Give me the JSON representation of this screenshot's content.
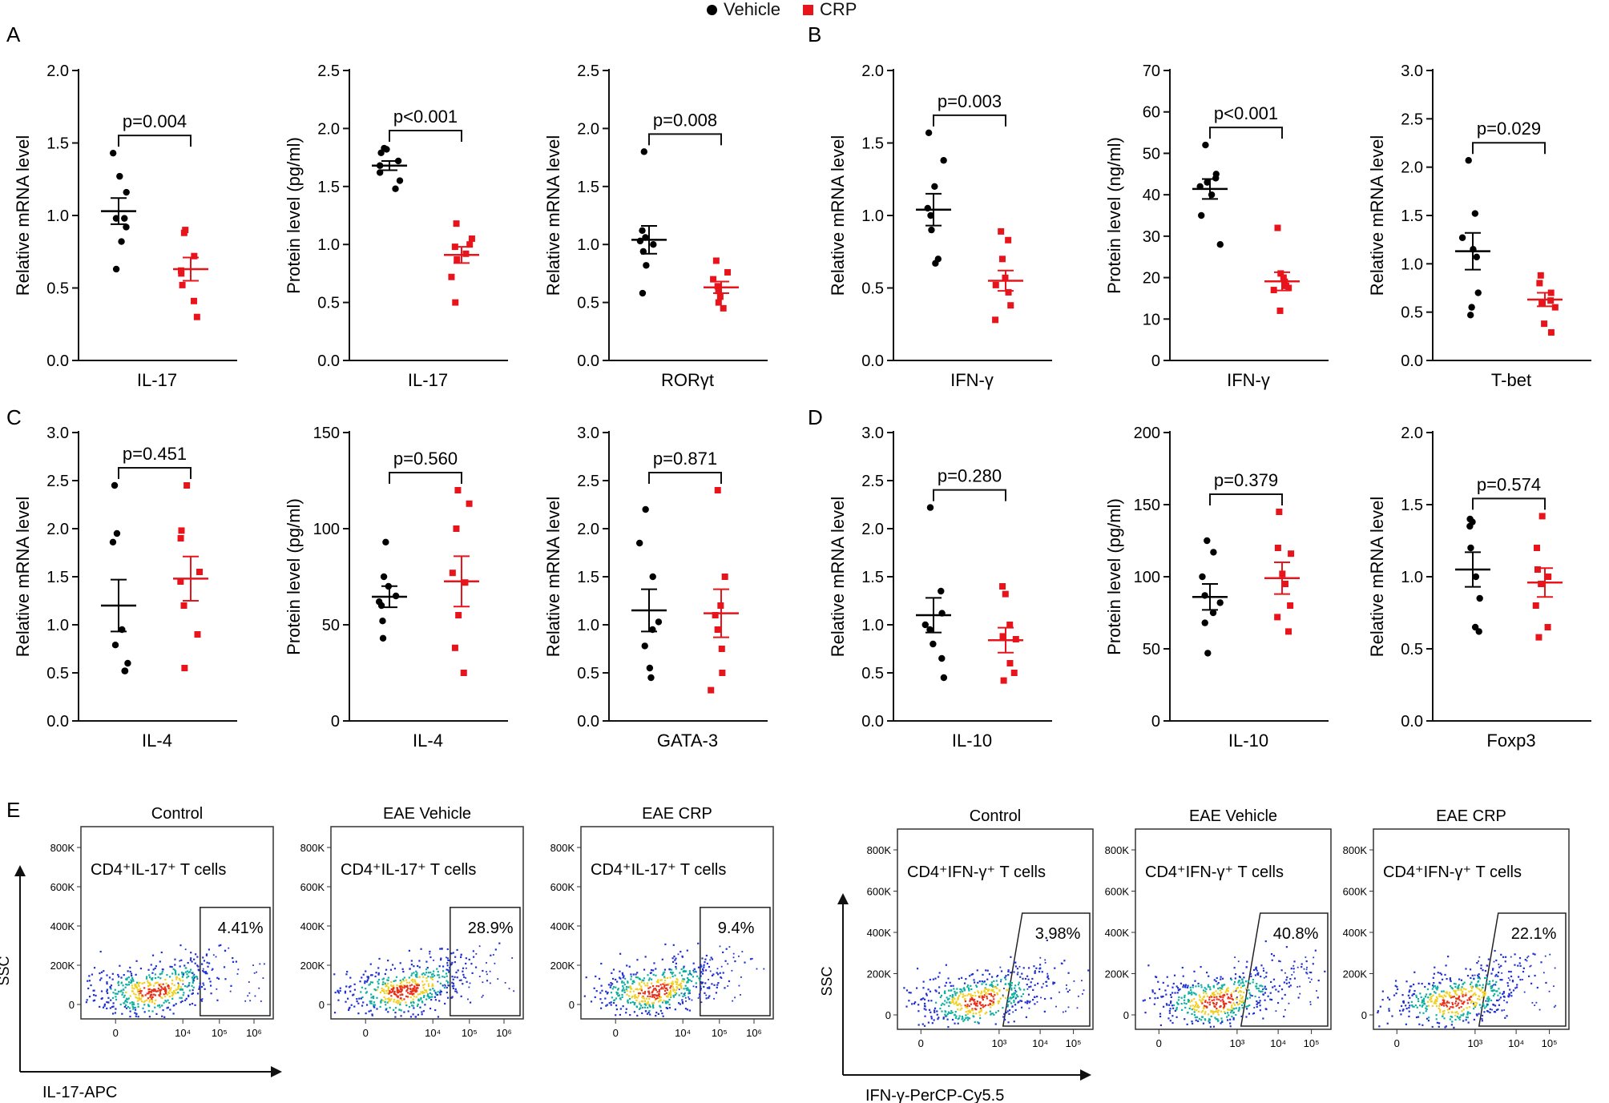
{
  "legend": {
    "items": [
      {
        "label": "Vehicle",
        "color": "#000000",
        "marker": "circle"
      },
      {
        "label": "CRP",
        "color": "#e8141c",
        "marker": "square"
      }
    ]
  },
  "panels": [
    {
      "letter": "A"
    },
    {
      "letter": "B"
    },
    {
      "letter": "C"
    },
    {
      "letter": "D"
    },
    {
      "letter": "E"
    }
  ],
  "chart_data": [
    {
      "type": "scatter",
      "panel": "A",
      "ylabel": "Relative mRNA level",
      "xlabel": "IL-17",
      "ylim": [
        0,
        2.0
      ],
      "yticks": [
        "0.0",
        "0.5",
        "1.0",
        "1.5",
        "2.0"
      ],
      "tick_values": [
        0,
        0.5,
        1.0,
        1.5,
        2.0
      ],
      "pvalue": "p=0.004",
      "series": [
        {
          "name": "Vehicle",
          "values": [
            1.43,
            1.27,
            1.16,
            0.98,
            0.98,
            0.92,
            0.82,
            0.63
          ],
          "mean": 1.03,
          "sem": 0.09
        },
        {
          "name": "CRP",
          "values": [
            0.9,
            0.88,
            0.72,
            0.62,
            0.6,
            0.52,
            0.41,
            0.3
          ],
          "mean": 0.63,
          "sem": 0.08
        }
      ]
    },
    {
      "type": "scatter",
      "panel": "A",
      "ylabel": "Protein level (pg/ml)",
      "xlabel": "IL-17",
      "ylim": [
        0,
        2.5
      ],
      "yticks": [
        "0.0",
        "0.5",
        "1.0",
        "1.5",
        "2.0",
        "2.5"
      ],
      "tick_values": [
        0,
        0.5,
        1.0,
        1.5,
        2.0,
        2.5
      ],
      "pvalue": "p<0.001",
      "series": [
        {
          "name": "Vehicle",
          "values": [
            1.83,
            1.82,
            1.79,
            1.72,
            1.68,
            1.62,
            1.55,
            1.48
          ],
          "mean": 1.68,
          "sem": 0.04
        },
        {
          "name": "CRP",
          "values": [
            1.18,
            1.05,
            1.0,
            0.98,
            0.92,
            0.87,
            0.72,
            0.5
          ],
          "mean": 0.91,
          "sem": 0.07
        }
      ]
    },
    {
      "type": "scatter",
      "panel": "A",
      "ylabel": "Relative mRNA level",
      "xlabel": "RORγt",
      "ylim": [
        0,
        2.5
      ],
      "yticks": [
        "0.0",
        "0.5",
        "1.0",
        "1.5",
        "2.0",
        "2.5"
      ],
      "tick_values": [
        0,
        0.5,
        1.0,
        1.5,
        2.0,
        2.5
      ],
      "pvalue": "p=0.008",
      "series": [
        {
          "name": "Vehicle",
          "values": [
            1.8,
            1.12,
            1.06,
            1.03,
            1.0,
            0.94,
            0.82,
            0.58
          ],
          "mean": 1.04,
          "sem": 0.12
        },
        {
          "name": "CRP",
          "values": [
            0.86,
            0.76,
            0.7,
            0.64,
            0.6,
            0.55,
            0.5,
            0.45
          ],
          "mean": 0.63,
          "sem": 0.05
        }
      ]
    },
    {
      "type": "scatter",
      "panel": "B",
      "ylabel": "Relative mRNA level",
      "xlabel": "IFN-γ",
      "ylim": [
        0,
        2.0
      ],
      "yticks": [
        "0.0",
        "0.5",
        "1.0",
        "1.5",
        "2.0"
      ],
      "tick_values": [
        0,
        0.5,
        1.0,
        1.5,
        2.0
      ],
      "pvalue": "p=0.003",
      "series": [
        {
          "name": "Vehicle",
          "values": [
            1.57,
            1.38,
            1.2,
            1.05,
            1.0,
            0.9,
            0.7,
            0.67
          ],
          "mean": 1.04,
          "sem": 0.11
        },
        {
          "name": "CRP",
          "values": [
            0.89,
            0.83,
            0.7,
            0.57,
            0.52,
            0.47,
            0.38,
            0.28
          ],
          "mean": 0.55,
          "sem": 0.07
        }
      ]
    },
    {
      "type": "scatter",
      "panel": "B",
      "ylabel": "Protein level (ng/ml)",
      "xlabel": "IFN-γ",
      "ylim": [
        0,
        70
      ],
      "yticks": [
        "0",
        "10",
        "20",
        "30",
        "40",
        "50",
        "60",
        "70"
      ],
      "tick_values": [
        0,
        10,
        20,
        30,
        40,
        50,
        60,
        70
      ],
      "pvalue": "p<0.001",
      "series": [
        {
          "name": "Vehicle",
          "values": [
            52,
            45,
            44,
            43,
            42,
            40,
            35,
            28
          ],
          "mean": 41.4,
          "sem": 2.4
        },
        {
          "name": "CRP",
          "values": [
            32,
            21,
            20,
            19,
            18,
            17.5,
            17,
            12
          ],
          "mean": 19.1,
          "sem": 2.2
        }
      ]
    },
    {
      "type": "scatter",
      "panel": "B",
      "ylabel": "Relative mRNA level",
      "xlabel": "T-bet",
      "ylim": [
        0,
        3.0
      ],
      "yticks": [
        "0.0",
        "0.5",
        "1.0",
        "1.5",
        "2.0",
        "2.5",
        "3.0"
      ],
      "tick_values": [
        0,
        0.5,
        1.0,
        1.5,
        2.0,
        2.5,
        3.0
      ],
      "pvalue": "p=0.029",
      "series": [
        {
          "name": "Vehicle",
          "values": [
            2.07,
            1.52,
            1.27,
            1.15,
            1.07,
            0.7,
            0.55,
            0.47
          ],
          "mean": 1.13,
          "sem": 0.19
        },
        {
          "name": "CRP",
          "values": [
            0.88,
            0.8,
            0.7,
            0.62,
            0.6,
            0.55,
            0.38,
            0.29
          ],
          "mean": 0.63,
          "sem": 0.07
        }
      ]
    },
    {
      "type": "scatter",
      "panel": "C",
      "ylabel": "Relative mRNA level",
      "xlabel": "IL-4",
      "ylim": [
        0,
        3.0
      ],
      "yticks": [
        "0.0",
        "0.5",
        "1.0",
        "1.5",
        "2.0",
        "2.5",
        "3.0"
      ],
      "tick_values": [
        0,
        0.5,
        1.0,
        1.5,
        2.0,
        2.5,
        3.0
      ],
      "pvalue": "p=0.451",
      "series": [
        {
          "name": "Vehicle",
          "values": [
            2.45,
            1.95,
            1.86,
            0.95,
            0.79,
            0.6,
            0.52,
            0.52
          ],
          "mean": 1.2,
          "sem": 0.27
        },
        {
          "name": "CRP",
          "values": [
            2.45,
            1.98,
            1.9,
            1.55,
            1.45,
            1.2,
            0.9,
            0.55
          ],
          "mean": 1.48,
          "sem": 0.23
        }
      ]
    },
    {
      "type": "scatter",
      "panel": "C",
      "ylabel": "Protein level (pg/ml)",
      "xlabel": "IL-4",
      "ylim": [
        0,
        150
      ],
      "yticks": [
        "0",
        "50",
        "100",
        "150"
      ],
      "tick_values": [
        0,
        50,
        100,
        150
      ],
      "pvalue": "p=0.560",
      "series": [
        {
          "name": "Vehicle",
          "values": [
            93,
            75,
            70,
            65,
            62,
            60,
            52,
            43
          ],
          "mean": 64.6,
          "sem": 5.5
        },
        {
          "name": "CRP",
          "values": [
            120,
            113,
            100,
            77,
            72,
            55,
            38,
            25
          ],
          "mean": 72.6,
          "sem": 13.1
        }
      ]
    },
    {
      "type": "scatter",
      "panel": "C",
      "ylabel": "Relative mRNA level",
      "xlabel": "GATA-3",
      "ylim": [
        0,
        3.0
      ],
      "yticks": [
        "0.0",
        "0.5",
        "1.0",
        "1.5",
        "2.0",
        "2.5",
        "3.0"
      ],
      "tick_values": [
        0,
        0.5,
        1.0,
        1.5,
        2.0,
        2.5,
        3.0
      ],
      "pvalue": "p=0.871",
      "series": [
        {
          "name": "Vehicle",
          "values": [
            2.2,
            1.85,
            1.5,
            1.03,
            0.95,
            0.78,
            0.55,
            0.45
          ],
          "mean": 1.15,
          "sem": 0.22
        },
        {
          "name": "CRP",
          "values": [
            2.4,
            1.5,
            1.2,
            1.1,
            0.95,
            0.75,
            0.5,
            0.32
          ],
          "mean": 1.12,
          "sem": 0.25
        }
      ]
    },
    {
      "type": "scatter",
      "panel": "D",
      "ylabel": "Relative mRNA level",
      "xlabel": "IL-10",
      "ylim": [
        0,
        3.0
      ],
      "yticks": [
        "0.0",
        "0.5",
        "1.0",
        "1.5",
        "2.0",
        "2.5",
        "3.0"
      ],
      "tick_values": [
        0,
        0.5,
        1.0,
        1.5,
        2.0,
        2.5,
        3.0
      ],
      "pvalue": "p=0.280",
      "series": [
        {
          "name": "Vehicle",
          "values": [
            2.22,
            1.35,
            1.12,
            1.0,
            0.95,
            0.8,
            0.65,
            0.45
          ],
          "mean": 1.1,
          "sem": 0.18
        },
        {
          "name": "CRP",
          "values": [
            1.4,
            1.32,
            1.0,
            0.88,
            0.85,
            0.6,
            0.5,
            0.42
          ],
          "mean": 0.84,
          "sem": 0.13
        }
      ]
    },
    {
      "type": "scatter",
      "panel": "D",
      "ylabel": "Protein level (pg/ml)",
      "xlabel": "IL-10",
      "ylim": [
        0,
        200
      ],
      "yticks": [
        "0",
        "50",
        "100",
        "150",
        "200"
      ],
      "tick_values": [
        0,
        50,
        100,
        150,
        200
      ],
      "pvalue": "p=0.379",
      "series": [
        {
          "name": "Vehicle",
          "values": [
            125,
            117,
            100,
            87,
            82,
            75,
            68,
            47
          ],
          "mean": 86,
          "sem": 9
        },
        {
          "name": "CRP",
          "values": [
            145,
            120,
            116,
            102,
            95,
            80,
            72,
            62
          ],
          "mean": 99,
          "sem": 11
        }
      ]
    },
    {
      "type": "scatter",
      "panel": "D",
      "ylabel": "Relative mRNA level",
      "xlabel": "Foxp3",
      "ylim": [
        0,
        2.0
      ],
      "yticks": [
        "0.0",
        "0.5",
        "1.0",
        "1.5",
        "2.0"
      ],
      "tick_values": [
        0,
        0.5,
        1.0,
        1.5,
        2.0
      ],
      "pvalue": "p=0.574",
      "series": [
        {
          "name": "Vehicle",
          "values": [
            1.4,
            1.38,
            1.35,
            1.2,
            1.0,
            0.85,
            0.65,
            0.62
          ],
          "mean": 1.05,
          "sem": 0.12
        },
        {
          "name": "CRP",
          "values": [
            1.42,
            1.2,
            1.05,
            1.0,
            0.95,
            0.8,
            0.65,
            0.58
          ],
          "mean": 0.96,
          "sem": 0.1
        }
      ]
    }
  ],
  "flow": {
    "groups": [
      {
        "xaxis_label": "IL-17-APC",
        "yaxis_label": "SSC",
        "plots": [
          {
            "title": "Control",
            "label": "CD4⁺IL-17⁺ T cells",
            "percent": "4.41%"
          },
          {
            "title": "EAE  Vehicle",
            "label": "CD4⁺IL-17⁺ T cells",
            "percent": "28.9%"
          },
          {
            "title": "EAE CRP",
            "label": "CD4⁺IL-17⁺ T cells",
            "percent": "9.4%"
          }
        ],
        "yticks": [
          "0",
          "200K",
          "400K",
          "600K",
          "800K"
        ],
        "xticks": [
          "0",
          "10⁴",
          "10⁵",
          "10⁶"
        ]
      },
      {
        "xaxis_label": "IFN-γ-PerCP-Cy5.5",
        "yaxis_label": "SSC",
        "plots": [
          {
            "title": "Control",
            "label": "CD4⁺IFN-γ⁺ T cells",
            "percent": "3.98%"
          },
          {
            "title": "EAE  Vehicle",
            "label": "CD4⁺IFN-γ⁺ T cells",
            "percent": "40.8%"
          },
          {
            "title": "EAE CRP",
            "label": "CD4⁺IFN-γ⁺ T cells",
            "percent": "22.1%"
          }
        ],
        "yticks": [
          "0",
          "200K",
          "400K",
          "600K",
          "800K"
        ],
        "xticks": [
          "0",
          "10³",
          "10⁴",
          "10⁵"
        ]
      }
    ]
  },
  "colors": {
    "vehicle": "#000000",
    "crp": "#e8141c",
    "density_low": "#2030d0",
    "density_mid": "#10b0a0",
    "density_high": "#f0d020",
    "density_peak": "#e83018"
  }
}
